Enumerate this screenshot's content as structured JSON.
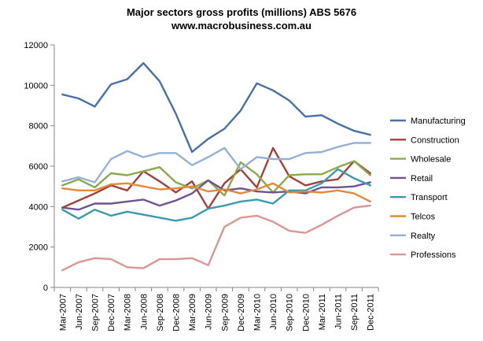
{
  "chart_data": {
    "type": "line",
    "title": "Major sectors gross profits (millions) ABS 5676",
    "subtitle": "www.macrobusiness.com.au",
    "xlabel": "",
    "ylabel": "",
    "ylim": [
      0,
      12000
    ],
    "yticks": [
      0,
      2000,
      4000,
      6000,
      8000,
      10000,
      12000
    ],
    "grid": false,
    "legend_position": "right",
    "x": [
      "Mar-2007",
      "Jun-2007",
      "Sep-2007",
      "Dec-2007",
      "Mar-2008",
      "Jun-2008",
      "Sep-2008",
      "Dec-2008",
      "Mar-2009",
      "Jun-2009",
      "Sep-2009",
      "Dec-2009",
      "Mar-2010",
      "Jun-2010",
      "Sep-2010",
      "Dec-2010",
      "Mar-2011",
      "Jun-2011",
      "Sep-2011",
      "Dec-2011"
    ],
    "x_tick_labels": [
      "Mar-2007",
      "Jun-2007",
      "Sep-2007",
      "Dec-2007",
      "Mar-2008",
      "Jun-2008",
      "Sep-2008",
      "Dec-2008",
      "Mar-2009",
      "Jun-2009",
      "Sep-2009",
      "Dec-2009",
      "Mar-2010",
      "Jun-2010",
      "Sep-2010",
      "Dec-2010",
      "Mar-2011",
      "Jun-2011",
      "Sep-2011",
      "Dec-2011"
    ],
    "series": [
      {
        "name": "Manufacturing",
        "color": "#4a6fa5",
        "values": [
          9550,
          9350,
          8950,
          10050,
          10300,
          11100,
          10200,
          8600,
          6700,
          7350,
          7850,
          8750,
          10100,
          9750,
          9250,
          8450,
          8520,
          8100,
          7750,
          7550
        ]
      },
      {
        "name": "Construction",
        "color": "#a0413c",
        "values": [
          3950,
          4300,
          4650,
          5050,
          4800,
          5750,
          5250,
          4700,
          5250,
          3900,
          5150,
          5850,
          4950,
          6900,
          5500,
          5050,
          5250,
          5350,
          6250,
          5650
        ]
      },
      {
        "name": "Wholesale",
        "color": "#8aaa4a",
        "values": [
          5050,
          5350,
          4950,
          5650,
          5550,
          5750,
          5950,
          5200,
          4900,
          5300,
          4550,
          6200,
          5600,
          4700,
          5550,
          5600,
          5600,
          5950,
          6250,
          5550
        ]
      },
      {
        "name": "Retail",
        "color": "#6e548e",
        "values": [
          3950,
          3850,
          4150,
          4150,
          4250,
          4350,
          4050,
          4300,
          4650,
          5300,
          4800,
          4900,
          4750,
          4700,
          4750,
          4650,
          4950,
          4950,
          5000,
          5200
        ]
      },
      {
        "name": "Transport",
        "color": "#3c9ab0",
        "values": [
          3850,
          3400,
          3850,
          3550,
          3750,
          3600,
          3450,
          3300,
          3450,
          3900,
          4050,
          4250,
          4350,
          4150,
          4800,
          4800,
          5150,
          5850,
          5400,
          5050
        ]
      },
      {
        "name": "Telcos",
        "color": "#e08a3c",
        "values": [
          4900,
          4800,
          4800,
          5100,
          5150,
          5000,
          4850,
          4900,
          5000,
          4750,
          4850,
          4650,
          4850,
          5150,
          4700,
          4750,
          4700,
          4800,
          4650,
          4250
        ]
      },
      {
        "name": "Realty",
        "color": "#95b0d6",
        "values": [
          5250,
          5450,
          5200,
          6350,
          6750,
          6450,
          6650,
          6650,
          6050,
          6450,
          6900,
          5850,
          6450,
          6350,
          6350,
          6650,
          6700,
          6950,
          7150,
          7150
        ]
      },
      {
        "name": "Professions",
        "color": "#d99694",
        "values": [
          850,
          1250,
          1450,
          1400,
          1000,
          950,
          1400,
          1400,
          1450,
          1100,
          3000,
          3450,
          3550,
          3250,
          2800,
          2700,
          3100,
          3550,
          3950,
          4050
        ]
      }
    ]
  }
}
